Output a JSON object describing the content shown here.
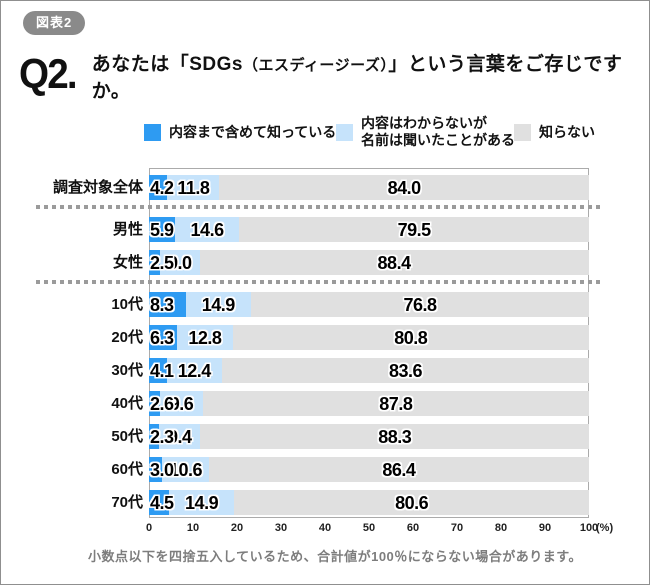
{
  "badge": "図表2",
  "question": {
    "number": "Q2.",
    "text_main": "あなたは「SDGs",
    "text_small": "（エスディージーズ）",
    "text_rest": "」という言葉をご存じですか。"
  },
  "legend": {
    "items": [
      {
        "label": "内容まで含めて知っている",
        "color": "#2e9bf2"
      },
      {
        "label": [
          "内容はわからないが",
          "名前は聞いたことがある"
        ],
        "color": "#c6e3fb"
      },
      {
        "label": "知らない",
        "color": "#e0e0e0"
      }
    ]
  },
  "chart_data": {
    "type": "bar",
    "stacked": true,
    "orientation": "horizontal",
    "categories": [
      "調査対象全体",
      "男性",
      "女性",
      "10代",
      "20代",
      "30代",
      "40代",
      "50代",
      "60代",
      "70代"
    ],
    "series": [
      {
        "name": "内容まで含めて知っている",
        "color": "#2e9bf2",
        "values": [
          4.2,
          5.9,
          2.5,
          8.3,
          6.3,
          4.1,
          2.6,
          2.3,
          3.0,
          4.5
        ]
      },
      {
        "name": "内容はわからないが名前は聞いたことがある",
        "color": "#c6e3fb",
        "values": [
          11.8,
          14.6,
          9.0,
          14.9,
          12.8,
          12.4,
          9.6,
          9.4,
          10.6,
          14.9
        ]
      },
      {
        "name": "知らない",
        "color": "#e0e0e0",
        "values": [
          84.0,
          79.5,
          88.4,
          76.8,
          80.8,
          83.6,
          87.8,
          88.3,
          86.4,
          80.6
        ]
      }
    ],
    "separators_after": [
      0,
      2
    ],
    "xlim": [
      0,
      100
    ],
    "ticks": [
      0,
      10,
      20,
      30,
      40,
      50,
      60,
      70,
      80,
      90,
      100
    ],
    "unit_label": "(%)",
    "value_format": "one_decimal",
    "grid": false,
    "legend_position": "top"
  },
  "footnote": "小数点以下を四捨五入しているため、合計値が100％にならない場合があります。"
}
